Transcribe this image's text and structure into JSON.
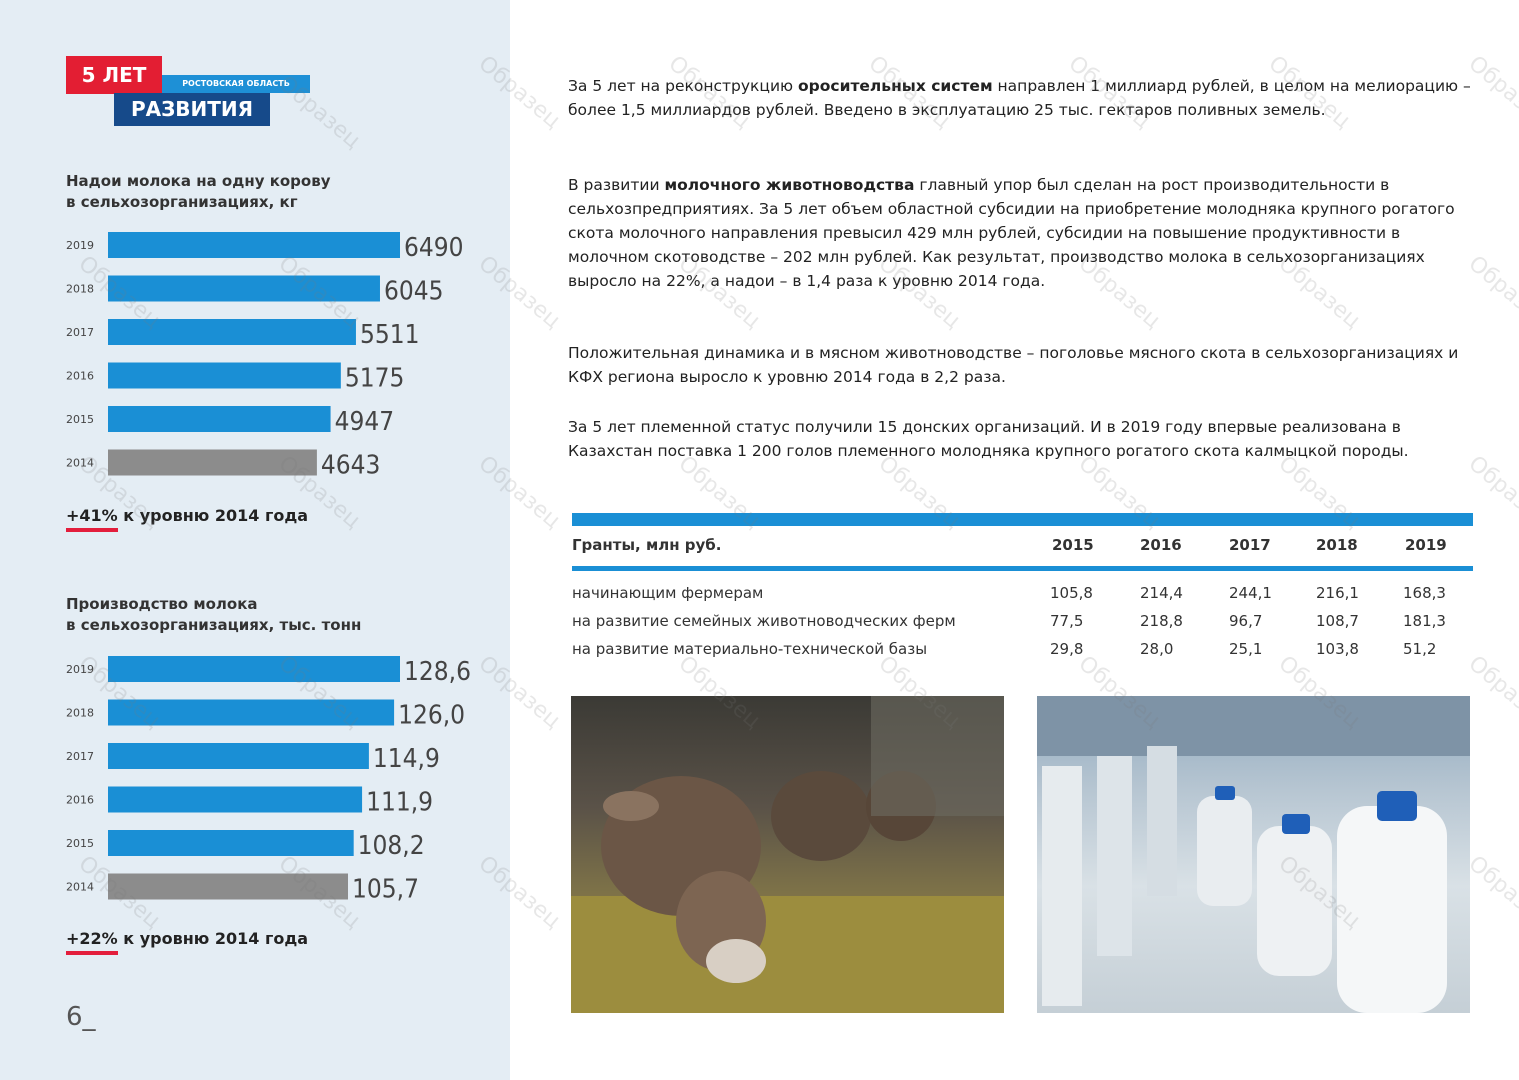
{
  "logo": {
    "years": "5 ЛЕТ",
    "region": "РОСТОВСКАЯ ОБЛАСТЬ",
    "development": "РАЗВИТИЯ"
  },
  "yield_chart": {
    "title_line1": "Надои молока на одну корову",
    "title_line2": "в сельхозорганизациях, кг",
    "growth_pct": "+41%",
    "growth_text": "к уровню 2014 года"
  },
  "production_chart": {
    "title_line1": "Производство молока",
    "title_line2": "в сельхозорганизациях, тыс. тонн",
    "growth_pct": "+22%",
    "growth_text": "к уровню 2014 года"
  },
  "chart_data": [
    {
      "type": "bar",
      "orientation": "horizontal",
      "categories": [
        "2019",
        "2018",
        "2017",
        "2016",
        "2015",
        "2014"
      ],
      "values": [
        6490,
        6045,
        5511,
        5175,
        4947,
        4643
      ],
      "value_labels": [
        "6490",
        "6045",
        "5511",
        "5175",
        "4947",
        "4643"
      ],
      "colors": [
        "#1a8fd5",
        "#1a8fd5",
        "#1a8fd5",
        "#1a8fd5",
        "#1a8fd5",
        "#8c8c8c"
      ],
      "title": "Надои молока на одну корову в сельхозорганизациях, кг"
    },
    {
      "type": "bar",
      "orientation": "horizontal",
      "categories": [
        "2019",
        "2018",
        "2017",
        "2016",
        "2015",
        "2014"
      ],
      "values": [
        128.6,
        126.0,
        114.9,
        111.9,
        108.2,
        105.7
      ],
      "value_labels": [
        "128,6",
        "126,0",
        "114,9",
        "111,9",
        "108,2",
        "105,7"
      ],
      "colors": [
        "#1a8fd5",
        "#1a8fd5",
        "#1a8fd5",
        "#1a8fd5",
        "#1a8fd5",
        "#8c8c8c"
      ],
      "title": "Производство молока в сельхозорганизациях, тыс. тонн"
    }
  ],
  "paragraphs": {
    "p1_a": "За 5 лет на реконструкцию ",
    "p1_b": "оросительных систем",
    "p1_c": " направлен 1 миллиард рублей, в целом на мелиорацию – более 1,5 миллиардов рублей. Введено в эксплуатацию 25 тыс. гектаров поливных земель.",
    "p2_a": "В развитии ",
    "p2_b": "молочного животноводства",
    "p2_c": " главный упор был сделан на рост производительности в сельхозпредприятиях. За 5 лет объем областной субсидии на приобретение молодняка крупного рогатого скота молочного направления превысил 429 млн рублей, субсидии на повышение продуктивности в молочном скотоводстве – 202 млн рублей. Как результат, производство молока в сельхозорганизациях выросло на 22%, а надои – в 1,4 раза к уровню 2014 года.",
    "p3": "Положительная динамика и в мясном животноводстве – поголовье мясного скота в сельхозорганизациях и КФХ региона выросло к уровню 2014 года в 2,2 раза.",
    "p4": "За 5 лет племенной статус получили 15 донских организаций. И в 2019 году впервые реализована в Казахстан поставка 1 200 голов племенного молодняка крупного рогатого скота калмыцкой породы."
  },
  "grants_table": {
    "header": "Гранты, млн руб.",
    "years": [
      "2015",
      "2016",
      "2017",
      "2018",
      "2019"
    ],
    "rows": [
      {
        "label": "начинающим фермерам",
        "values": [
          "105,8",
          "214,4",
          "244,1",
          "216,1",
          "168,3"
        ]
      },
      {
        "label": "на развитие семейных животноводческих ферм",
        "values": [
          "77,5",
          "218,8",
          "96,7",
          "108,7",
          "181,3"
        ]
      },
      {
        "label": "на развитие материально-технической базы",
        "values": [
          "29,8",
          "28,0",
          "25,1",
          "103,8",
          "51,2"
        ]
      }
    ]
  },
  "page_number": "6_",
  "watermark_text": "Образец"
}
